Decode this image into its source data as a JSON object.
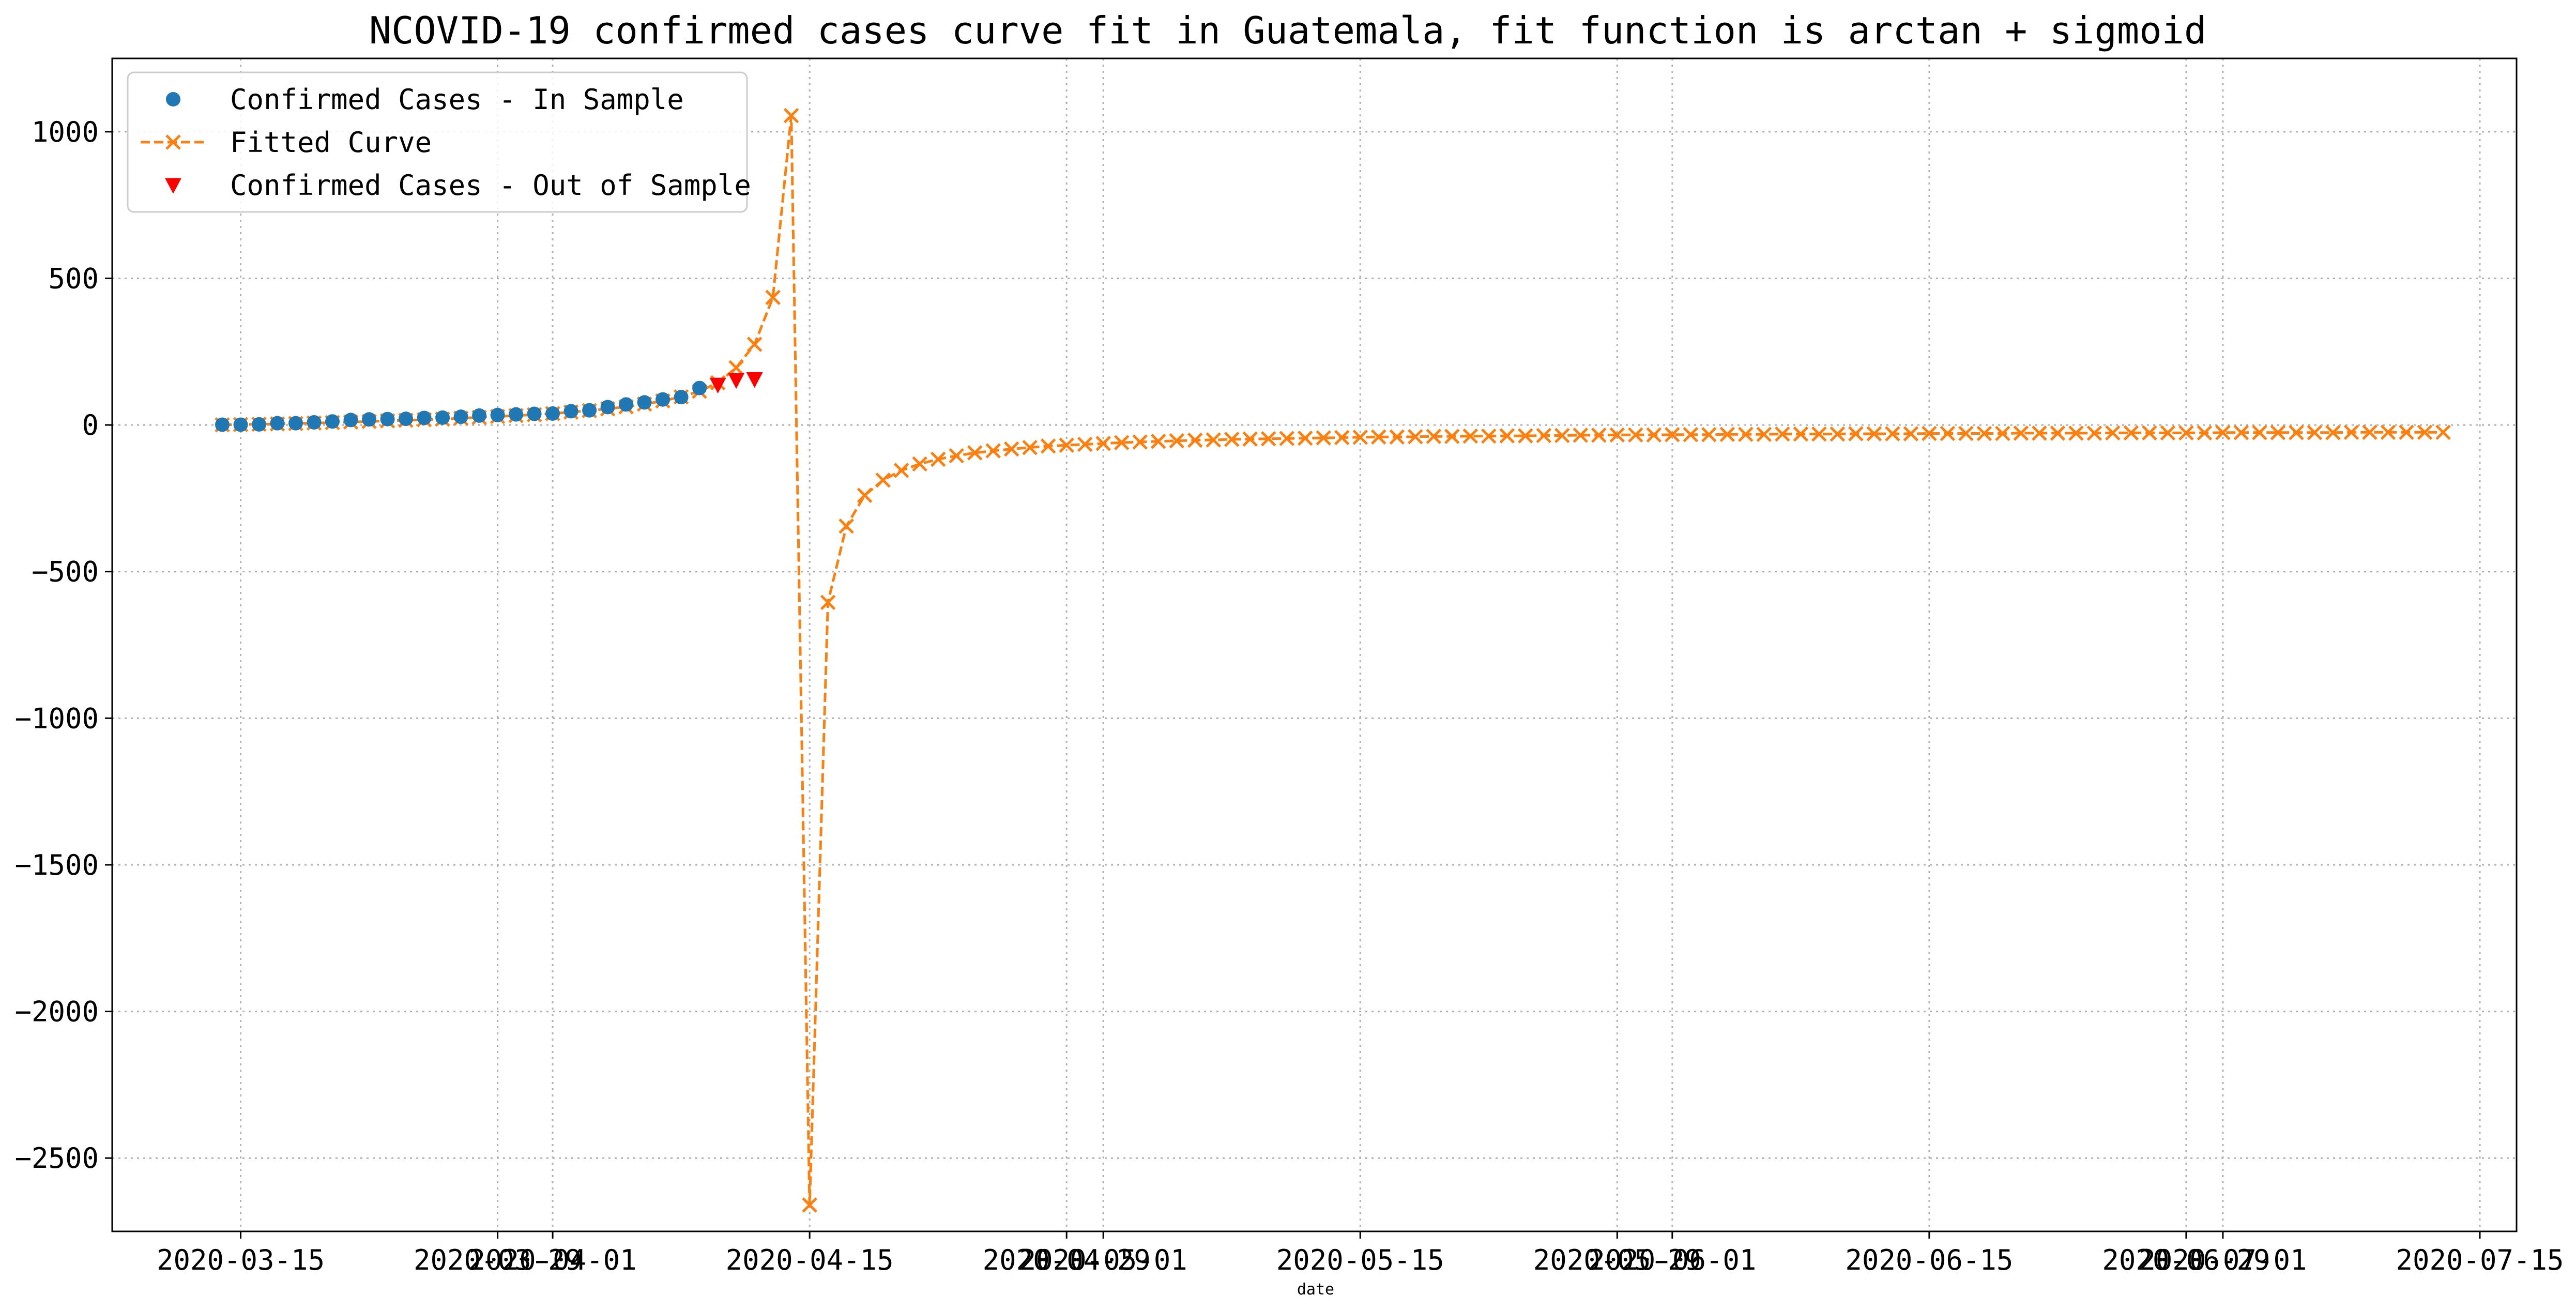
{
  "chart_data": {
    "type": "line",
    "title": "NCOVID-19 confirmed cases curve fit in Guatemala, fit function is arctan + sigmoid",
    "xlabel": "date",
    "ylabel": "",
    "x_type": "date",
    "xlim": [
      "2020-03-08",
      "2020-07-17"
    ],
    "ylim": [
      -2750,
      1250
    ],
    "x_ticks": [
      "2020-03-15",
      "2020-03-29",
      "2020-04-01",
      "2020-04-15",
      "2020-04-29",
      "2020-05-01",
      "2020-05-15",
      "2020-05-29",
      "2020-06-01",
      "2020-06-15",
      "2020-06-29",
      "2020-07-01",
      "2020-07-15"
    ],
    "y_ticks": [
      1000,
      500,
      0,
      -500,
      -1000,
      -1500,
      -2000,
      -2500
    ],
    "y_tick_labels": [
      "1000",
      "500",
      "0",
      "−500",
      "−1000",
      "−1500",
      "−2000",
      "−2500"
    ],
    "grid": true,
    "legend_position": "top-left",
    "colors": {
      "in_sample": "#1f77b4",
      "fitted": "#ff7f0e",
      "out_sample": "#ff0000"
    },
    "series": [
      {
        "name": "Confirmed Cases - In Sample",
        "style": "marker-circle",
        "points": [
          [
            "2020-03-14",
            1
          ],
          [
            "2020-03-15",
            1
          ],
          [
            "2020-03-16",
            2
          ],
          [
            "2020-03-17",
            6
          ],
          [
            "2020-03-18",
            6
          ],
          [
            "2020-03-19",
            9
          ],
          [
            "2020-03-20",
            12
          ],
          [
            "2020-03-21",
            17
          ],
          [
            "2020-03-22",
            19
          ],
          [
            "2020-03-23",
            20
          ],
          [
            "2020-03-24",
            21
          ],
          [
            "2020-03-25",
            24
          ],
          [
            "2020-03-26",
            25
          ],
          [
            "2020-03-27",
            28
          ],
          [
            "2020-03-28",
            32
          ],
          [
            "2020-03-29",
            34
          ],
          [
            "2020-03-30",
            36
          ],
          [
            "2020-03-31",
            38
          ],
          [
            "2020-04-01",
            39
          ],
          [
            "2020-04-02",
            47
          ],
          [
            "2020-04-03",
            50
          ],
          [
            "2020-04-04",
            61
          ],
          [
            "2020-04-05",
            70
          ],
          [
            "2020-04-06",
            77
          ],
          [
            "2020-04-07",
            87
          ],
          [
            "2020-04-08",
            95
          ],
          [
            "2020-04-09",
            126
          ]
        ]
      },
      {
        "name": "Fitted Curve",
        "style": "dashed-x",
        "points": [
          [
            "2020-03-14",
            0.5
          ],
          [
            "2020-03-15",
            1.5
          ],
          [
            "2020-03-16",
            2.5
          ],
          [
            "2020-03-17",
            3.5
          ],
          [
            "2020-03-18",
            5
          ],
          [
            "2020-03-19",
            6.5
          ],
          [
            "2020-03-20",
            8
          ],
          [
            "2020-03-21",
            10
          ],
          [
            "2020-03-22",
            12
          ],
          [
            "2020-03-23",
            14
          ],
          [
            "2020-03-24",
            16
          ],
          [
            "2020-03-25",
            18
          ],
          [
            "2020-03-26",
            20
          ],
          [
            "2020-03-27",
            23
          ],
          [
            "2020-03-28",
            26
          ],
          [
            "2020-03-29",
            29
          ],
          [
            "2020-03-30",
            32
          ],
          [
            "2020-03-31",
            35
          ],
          [
            "2020-04-01",
            39
          ],
          [
            "2020-04-02",
            44
          ],
          [
            "2020-04-03",
            49
          ],
          [
            "2020-04-04",
            55
          ],
          [
            "2020-04-05",
            62
          ],
          [
            "2020-04-06",
            71
          ],
          [
            "2020-04-07",
            82
          ],
          [
            "2020-04-08",
            96
          ],
          [
            "2020-04-09",
            115
          ],
          [
            "2020-04-10",
            144
          ],
          [
            "2020-04-11",
            195
          ],
          [
            "2020-04-12",
            275
          ],
          [
            "2020-04-13",
            435
          ],
          [
            "2020-04-14",
            1055
          ],
          [
            "2020-04-15",
            -2660
          ],
          [
            "2020-04-16",
            -605
          ],
          [
            "2020-04-17",
            -345
          ],
          [
            "2020-04-18",
            -240
          ],
          [
            "2020-04-19",
            -188
          ],
          [
            "2020-04-20",
            -155
          ],
          [
            "2020-04-21",
            -133
          ],
          [
            "2020-04-22",
            -117
          ],
          [
            "2020-04-23",
            -105
          ],
          [
            "2020-04-24",
            -95
          ],
          [
            "2020-04-25",
            -88
          ],
          [
            "2020-04-26",
            -82
          ],
          [
            "2020-04-27",
            -77
          ],
          [
            "2020-04-28",
            -72
          ],
          [
            "2020-04-29",
            -69
          ],
          [
            "2020-04-30",
            -66
          ],
          [
            "2020-05-01",
            -63
          ],
          [
            "2020-05-02",
            -60
          ],
          [
            "2020-05-03",
            -58
          ],
          [
            "2020-05-04",
            -56
          ],
          [
            "2020-05-05",
            -54
          ],
          [
            "2020-05-06",
            -52
          ],
          [
            "2020-05-07",
            -51
          ],
          [
            "2020-05-08",
            -49
          ],
          [
            "2020-05-09",
            -48
          ],
          [
            "2020-05-10",
            -47
          ],
          [
            "2020-05-11",
            -46
          ],
          [
            "2020-05-12",
            -45
          ],
          [
            "2020-05-13",
            -44
          ],
          [
            "2020-05-14",
            -43
          ],
          [
            "2020-05-15",
            -42
          ],
          [
            "2020-05-16",
            -41
          ],
          [
            "2020-05-17",
            -41
          ],
          [
            "2020-05-18",
            -40
          ],
          [
            "2020-05-19",
            -39
          ],
          [
            "2020-05-20",
            -39
          ],
          [
            "2020-05-21",
            -38
          ],
          [
            "2020-05-22",
            -38
          ],
          [
            "2020-05-23",
            -37
          ],
          [
            "2020-05-24",
            -37
          ],
          [
            "2020-05-25",
            -36
          ],
          [
            "2020-05-26",
            -36
          ],
          [
            "2020-05-27",
            -35
          ],
          [
            "2020-05-28",
            -35
          ],
          [
            "2020-05-29",
            -34
          ],
          [
            "2020-05-30",
            -34
          ],
          [
            "2020-05-31",
            -34
          ],
          [
            "2020-06-01",
            -33
          ],
          [
            "2020-06-02",
            -33
          ],
          [
            "2020-06-03",
            -33
          ],
          [
            "2020-06-04",
            -32
          ],
          [
            "2020-06-05",
            -32
          ],
          [
            "2020-06-06",
            -32
          ],
          [
            "2020-06-07",
            -31
          ],
          [
            "2020-06-08",
            -31
          ],
          [
            "2020-06-09",
            -31
          ],
          [
            "2020-06-10",
            -31
          ],
          [
            "2020-06-11",
            -30
          ],
          [
            "2020-06-12",
            -30
          ],
          [
            "2020-06-13",
            -30
          ],
          [
            "2020-06-14",
            -30
          ],
          [
            "2020-06-15",
            -29
          ],
          [
            "2020-06-16",
            -29
          ],
          [
            "2020-06-17",
            -29
          ],
          [
            "2020-06-18",
            -29
          ],
          [
            "2020-06-19",
            -29
          ],
          [
            "2020-06-20",
            -28
          ],
          [
            "2020-06-21",
            -28
          ],
          [
            "2020-06-22",
            -28
          ],
          [
            "2020-06-23",
            -28
          ],
          [
            "2020-06-24",
            -28
          ],
          [
            "2020-06-25",
            -27
          ],
          [
            "2020-06-26",
            -27
          ],
          [
            "2020-06-27",
            -27
          ],
          [
            "2020-06-28",
            -27
          ],
          [
            "2020-06-29",
            -27
          ],
          [
            "2020-06-30",
            -27
          ],
          [
            "2020-07-01",
            -26
          ],
          [
            "2020-07-02",
            -26
          ],
          [
            "2020-07-03",
            -26
          ],
          [
            "2020-07-04",
            -26
          ],
          [
            "2020-07-05",
            -26
          ],
          [
            "2020-07-06",
            -26
          ],
          [
            "2020-07-07",
            -26
          ],
          [
            "2020-07-08",
            -25
          ],
          [
            "2020-07-09",
            -25
          ],
          [
            "2020-07-10",
            -25
          ],
          [
            "2020-07-11",
            -25
          ],
          [
            "2020-07-12",
            -25
          ],
          [
            "2020-07-13",
            -25
          ]
        ]
      },
      {
        "name": "Confirmed Cases - Out of Sample",
        "style": "marker-triangle-down",
        "points": [
          [
            "2020-04-10",
            137
          ],
          [
            "2020-04-11",
            153
          ],
          [
            "2020-04-12",
            156
          ]
        ]
      }
    ]
  }
}
